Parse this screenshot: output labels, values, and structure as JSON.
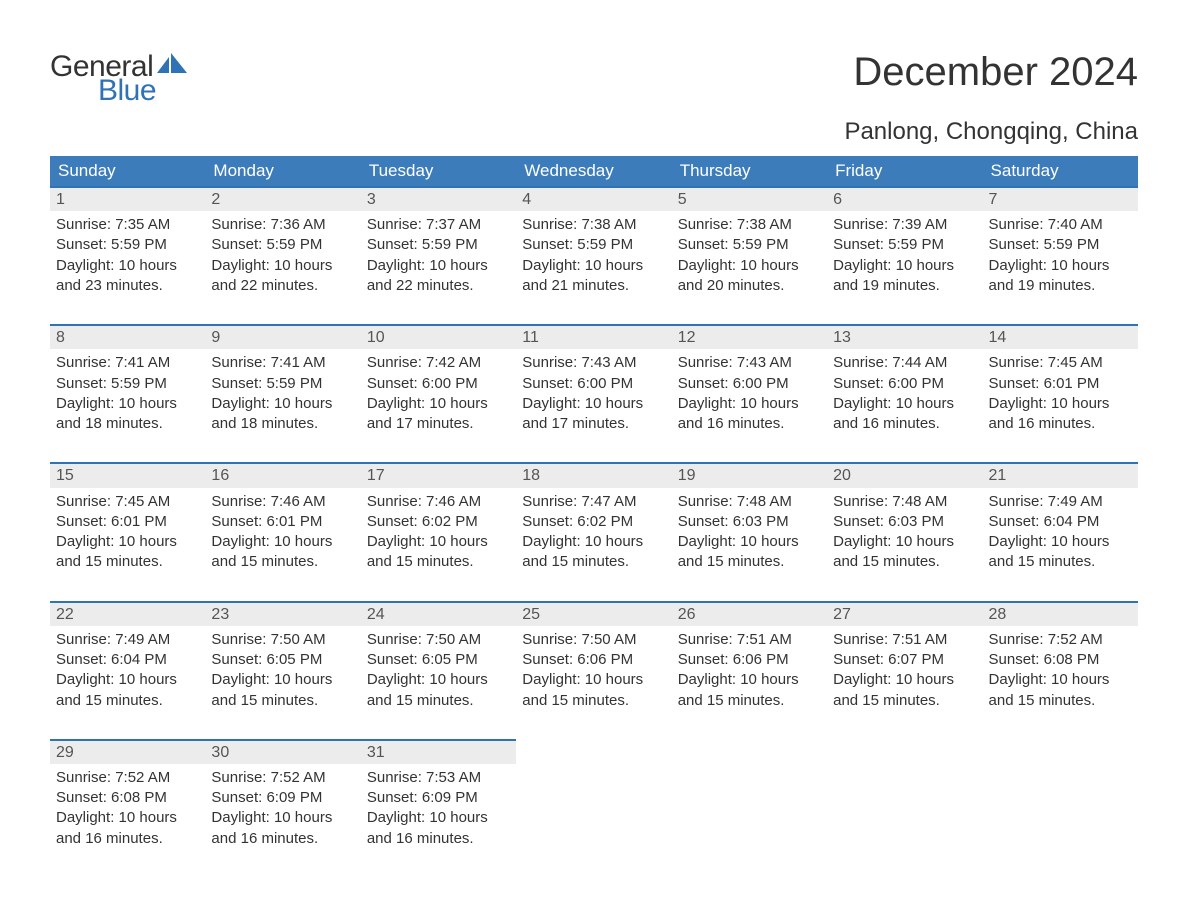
{
  "logo": {
    "word1": "General",
    "word2": "Blue",
    "flag_color": "#2f72b6"
  },
  "title": "December 2024",
  "location": "Panlong, Chongqing, China",
  "colors": {
    "header_bg": "#3d7cba",
    "header_text": "#ffffff",
    "row_border": "#2f72b6",
    "daynum_bg": "#ececec",
    "text": "#333333"
  },
  "day_names": [
    "Sunday",
    "Monday",
    "Tuesday",
    "Wednesday",
    "Thursday",
    "Friday",
    "Saturday"
  ],
  "labels": {
    "sunrise": "Sunrise",
    "sunset": "Sunset",
    "daylight": "Daylight"
  },
  "weeks": [
    [
      {
        "n": 1,
        "sunrise": "7:35 AM",
        "sunset": "5:59 PM",
        "daylight": "10 hours and 23 minutes."
      },
      {
        "n": 2,
        "sunrise": "7:36 AM",
        "sunset": "5:59 PM",
        "daylight": "10 hours and 22 minutes."
      },
      {
        "n": 3,
        "sunrise": "7:37 AM",
        "sunset": "5:59 PM",
        "daylight": "10 hours and 22 minutes."
      },
      {
        "n": 4,
        "sunrise": "7:38 AM",
        "sunset": "5:59 PM",
        "daylight": "10 hours and 21 minutes."
      },
      {
        "n": 5,
        "sunrise": "7:38 AM",
        "sunset": "5:59 PM",
        "daylight": "10 hours and 20 minutes."
      },
      {
        "n": 6,
        "sunrise": "7:39 AM",
        "sunset": "5:59 PM",
        "daylight": "10 hours and 19 minutes."
      },
      {
        "n": 7,
        "sunrise": "7:40 AM",
        "sunset": "5:59 PM",
        "daylight": "10 hours and 19 minutes."
      }
    ],
    [
      {
        "n": 8,
        "sunrise": "7:41 AM",
        "sunset": "5:59 PM",
        "daylight": "10 hours and 18 minutes."
      },
      {
        "n": 9,
        "sunrise": "7:41 AM",
        "sunset": "5:59 PM",
        "daylight": "10 hours and 18 minutes."
      },
      {
        "n": 10,
        "sunrise": "7:42 AM",
        "sunset": "6:00 PM",
        "daylight": "10 hours and 17 minutes."
      },
      {
        "n": 11,
        "sunrise": "7:43 AM",
        "sunset": "6:00 PM",
        "daylight": "10 hours and 17 minutes."
      },
      {
        "n": 12,
        "sunrise": "7:43 AM",
        "sunset": "6:00 PM",
        "daylight": "10 hours and 16 minutes."
      },
      {
        "n": 13,
        "sunrise": "7:44 AM",
        "sunset": "6:00 PM",
        "daylight": "10 hours and 16 minutes."
      },
      {
        "n": 14,
        "sunrise": "7:45 AM",
        "sunset": "6:01 PM",
        "daylight": "10 hours and 16 minutes."
      }
    ],
    [
      {
        "n": 15,
        "sunrise": "7:45 AM",
        "sunset": "6:01 PM",
        "daylight": "10 hours and 15 minutes."
      },
      {
        "n": 16,
        "sunrise": "7:46 AM",
        "sunset": "6:01 PM",
        "daylight": "10 hours and 15 minutes."
      },
      {
        "n": 17,
        "sunrise": "7:46 AM",
        "sunset": "6:02 PM",
        "daylight": "10 hours and 15 minutes."
      },
      {
        "n": 18,
        "sunrise": "7:47 AM",
        "sunset": "6:02 PM",
        "daylight": "10 hours and 15 minutes."
      },
      {
        "n": 19,
        "sunrise": "7:48 AM",
        "sunset": "6:03 PM",
        "daylight": "10 hours and 15 minutes."
      },
      {
        "n": 20,
        "sunrise": "7:48 AM",
        "sunset": "6:03 PM",
        "daylight": "10 hours and 15 minutes."
      },
      {
        "n": 21,
        "sunrise": "7:49 AM",
        "sunset": "6:04 PM",
        "daylight": "10 hours and 15 minutes."
      }
    ],
    [
      {
        "n": 22,
        "sunrise": "7:49 AM",
        "sunset": "6:04 PM",
        "daylight": "10 hours and 15 minutes."
      },
      {
        "n": 23,
        "sunrise": "7:50 AM",
        "sunset": "6:05 PM",
        "daylight": "10 hours and 15 minutes."
      },
      {
        "n": 24,
        "sunrise": "7:50 AM",
        "sunset": "6:05 PM",
        "daylight": "10 hours and 15 minutes."
      },
      {
        "n": 25,
        "sunrise": "7:50 AM",
        "sunset": "6:06 PM",
        "daylight": "10 hours and 15 minutes."
      },
      {
        "n": 26,
        "sunrise": "7:51 AM",
        "sunset": "6:06 PM",
        "daylight": "10 hours and 15 minutes."
      },
      {
        "n": 27,
        "sunrise": "7:51 AM",
        "sunset": "6:07 PM",
        "daylight": "10 hours and 15 minutes."
      },
      {
        "n": 28,
        "sunrise": "7:52 AM",
        "sunset": "6:08 PM",
        "daylight": "10 hours and 15 minutes."
      }
    ],
    [
      {
        "n": 29,
        "sunrise": "7:52 AM",
        "sunset": "6:08 PM",
        "daylight": "10 hours and 16 minutes."
      },
      {
        "n": 30,
        "sunrise": "7:52 AM",
        "sunset": "6:09 PM",
        "daylight": "10 hours and 16 minutes."
      },
      {
        "n": 31,
        "sunrise": "7:53 AM",
        "sunset": "6:09 PM",
        "daylight": "10 hours and 16 minutes."
      },
      null,
      null,
      null,
      null
    ]
  ]
}
